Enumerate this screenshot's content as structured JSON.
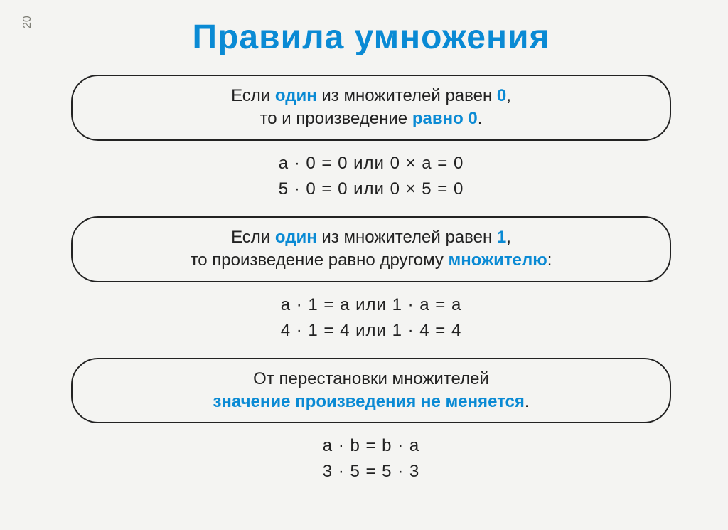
{
  "page_number": "20",
  "title": "Правила умножения",
  "colors": {
    "accent": "#0a8ad4",
    "text": "#222222",
    "background": "#f4f4f2",
    "border": "#222222",
    "page_num": "#808078"
  },
  "typography": {
    "title_fontsize": 48,
    "title_weight": 800,
    "body_fontsize": 24,
    "font_family": "Arial"
  },
  "blocks": [
    {
      "rule": {
        "line1_before": "Если ",
        "line1_hi": "один",
        "line1_after": " из множителей равен ",
        "line1_hi2": "0",
        "line1_tail": ",",
        "line2_before": "то и произведение ",
        "line2_hi": "равно 0",
        "line2_after": "."
      },
      "examples": [
        "a · 0 = 0  или  0 × a = 0",
        "5 · 0 = 0  или  0 × 5 = 0"
      ]
    },
    {
      "rule": {
        "line1_before": "Если ",
        "line1_hi": "один",
        "line1_after": " из множителей равен ",
        "line1_hi2": "1",
        "line1_tail": ",",
        "line2_before": "то произведение равно другому ",
        "line2_hi": "множителю",
        "line2_after": ":"
      },
      "examples": [
        "a · 1 = a  или  1 · a = a",
        "4 · 1 = 4  или  1 · 4 = 4"
      ]
    },
    {
      "rule": {
        "line1_before": "От перестановки множителей",
        "line1_hi": "",
        "line1_after": "",
        "line1_hi2": "",
        "line1_tail": "",
        "line2_before": "",
        "line2_hi": "значение произведения не меняется",
        "line2_after": "."
      },
      "examples": [
        "a · b = b · a",
        "3 · 5 = 5 · 3"
      ]
    }
  ]
}
